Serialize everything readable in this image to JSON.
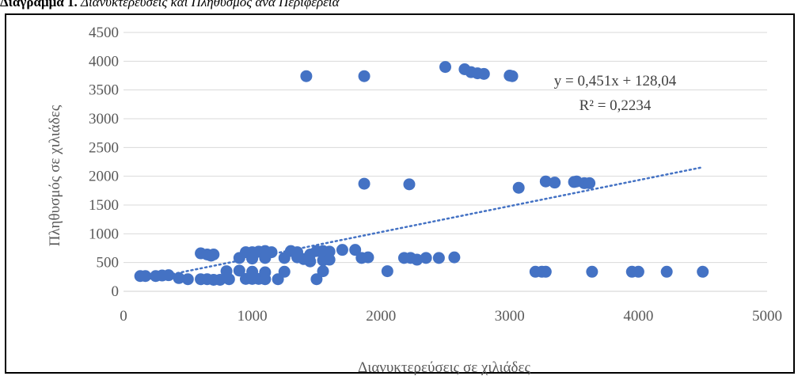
{
  "caption": {
    "bold": "Διάγραμμα 1.",
    "italic": "Διανυκτερεύσεις και Πληθυσμός ανά Περιφέρεια"
  },
  "colors": {
    "marker": "#4472C4",
    "trendline": "#4472C4",
    "grid": "#d9d9d9",
    "text": "#595959"
  },
  "chart_data": {
    "type": "scatter",
    "title": "",
    "xlabel": "Διανυκτερεύσεις σε χιλιάδες",
    "ylabel": "Πληθυσμός σε χιλιάδες",
    "xlim": [
      0,
      5000
    ],
    "ylim": [
      0,
      4500
    ],
    "x_ticks": [
      0,
      1000,
      2000,
      3000,
      4000,
      5000
    ],
    "y_ticks": [
      0,
      500,
      1000,
      1500,
      2000,
      2500,
      3000,
      3500,
      4000,
      4500
    ],
    "grid": true,
    "legend": "none",
    "series": [
      {
        "points": [
          [
            130,
            265
          ],
          [
            170,
            265
          ],
          [
            250,
            265
          ],
          [
            300,
            275
          ],
          [
            350,
            280
          ],
          [
            430,
            230
          ],
          [
            500,
            210
          ],
          [
            600,
            210
          ],
          [
            650,
            210
          ],
          [
            700,
            200
          ],
          [
            750,
            200
          ],
          [
            820,
            210
          ],
          [
            950,
            215
          ],
          [
            1000,
            215
          ],
          [
            1050,
            215
          ],
          [
            1100,
            210
          ],
          [
            1200,
            210
          ],
          [
            1500,
            210
          ],
          [
            600,
            660
          ],
          [
            650,
            640
          ],
          [
            680,
            620
          ],
          [
            700,
            640
          ],
          [
            950,
            680
          ],
          [
            1000,
            680
          ],
          [
            1050,
            690
          ],
          [
            1100,
            700
          ],
          [
            1150,
            680
          ],
          [
            1300,
            700
          ],
          [
            1350,
            680
          ],
          [
            1450,
            640
          ],
          [
            1500,
            700
          ],
          [
            1550,
            700
          ],
          [
            1600,
            690
          ],
          [
            1700,
            720
          ],
          [
            1800,
            720
          ],
          [
            1850,
            580
          ],
          [
            900,
            580
          ],
          [
            1000,
            570
          ],
          [
            1100,
            580
          ],
          [
            1250,
            580
          ],
          [
            1350,
            590
          ],
          [
            1400,
            560
          ],
          [
            1450,
            520
          ],
          [
            1550,
            540
          ],
          [
            1600,
            550
          ],
          [
            1900,
            590
          ],
          [
            800,
            350
          ],
          [
            900,
            360
          ],
          [
            1000,
            340
          ],
          [
            1100,
            330
          ],
          [
            1250,
            340
          ],
          [
            1550,
            350
          ],
          [
            2050,
            350
          ],
          [
            2180,
            580
          ],
          [
            2230,
            580
          ],
          [
            2280,
            550
          ],
          [
            2350,
            580
          ],
          [
            2450,
            580
          ],
          [
            2570,
            590
          ],
          [
            1420,
            3740
          ],
          [
            1870,
            3740
          ],
          [
            2500,
            3900
          ],
          [
            2650,
            3860
          ],
          [
            2700,
            3810
          ],
          [
            2750,
            3790
          ],
          [
            2800,
            3780
          ],
          [
            3000,
            3750
          ],
          [
            3020,
            3740
          ],
          [
            1870,
            1870
          ],
          [
            2220,
            1860
          ],
          [
            3070,
            1800
          ],
          [
            3280,
            1910
          ],
          [
            3350,
            1890
          ],
          [
            3500,
            1900
          ],
          [
            3520,
            1910
          ],
          [
            3580,
            1880
          ],
          [
            3620,
            1880
          ],
          [
            3200,
            340
          ],
          [
            3250,
            340
          ],
          [
            3280,
            340
          ],
          [
            3640,
            340
          ],
          [
            3950,
            340
          ],
          [
            4000,
            340
          ],
          [
            4220,
            340
          ],
          [
            4500,
            340
          ]
        ]
      }
    ],
    "trendline": {
      "slope": 0.451,
      "intercept": 128.04,
      "x_range": [
        200,
        4500
      ],
      "equation": "y = 0,451x + 128,04",
      "r_squared": "R² = 0,2234"
    }
  }
}
